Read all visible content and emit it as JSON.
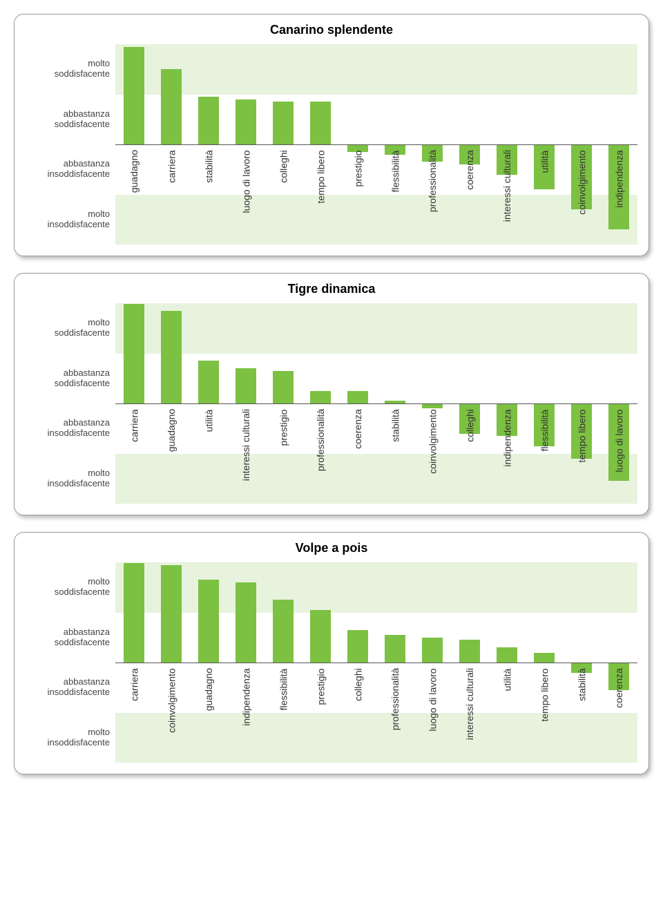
{
  "charts": [
    {
      "title": "Canarino splendente",
      "type": "bar",
      "bar_color": "#7cc142",
      "band_color": "#e8f3de",
      "background_color": "#ffffff",
      "axis_color": "#555555",
      "text_color": "#444444",
      "label_fontsize": 14,
      "title_fontsize": 18,
      "y_range": [
        -2,
        2
      ],
      "y_bands": [
        {
          "from": 1,
          "to": 2,
          "label": "molto\nsoddisfacente"
        },
        {
          "from": 0,
          "to": 1,
          "label": "abbastanza\nsoddisfacente"
        },
        {
          "from": -1,
          "to": 0,
          "label": "abbastanza\ninsoddisfacente"
        },
        {
          "from": -2,
          "to": -1,
          "label": "molto\ninsoddisfacente"
        }
      ],
      "categories": [
        "guadagno",
        "carriera",
        "stabilità",
        "luogo di lavoro",
        "colleghi",
        "tempo libero",
        "prestigio",
        "flessibilità",
        "professionalità",
        "coerenza",
        "interessi culturali",
        "utilità",
        "coinvolgimento",
        "indipendenza"
      ],
      "values": [
        1.95,
        1.5,
        0.95,
        0.9,
        0.85,
        0.85,
        -0.15,
        -0.2,
        -0.35,
        -0.4,
        -0.6,
        -0.9,
        -1.3,
        -1.7
      ]
    },
    {
      "title": "Tigre dinamica",
      "type": "bar",
      "bar_color": "#7cc142",
      "band_color": "#e8f3de",
      "background_color": "#ffffff",
      "axis_color": "#555555",
      "text_color": "#444444",
      "label_fontsize": 14,
      "title_fontsize": 18,
      "y_range": [
        -2,
        2
      ],
      "y_bands": [
        {
          "from": 1,
          "to": 2,
          "label": "molto\nsoddisfacente"
        },
        {
          "from": 0,
          "to": 1,
          "label": "abbastanza\nsoddisfacente"
        },
        {
          "from": -1,
          "to": 0,
          "label": "abbastanza\ninsoddisfacente"
        },
        {
          "from": -2,
          "to": -1,
          "label": "molto\ninsoddisfacente"
        }
      ],
      "categories": [
        "carriera",
        "guadagno",
        "utilità",
        "interessi culturali",
        "prestigio",
        "professionalità",
        "coerenza",
        "stabilità",
        "coinvolgimento",
        "colleghi",
        "indipendenza",
        "flessibilità",
        "tempo libero",
        "luogo di lavoro"
      ],
      "values": [
        1.98,
        1.85,
        0.85,
        0.7,
        0.65,
        0.25,
        0.25,
        0.05,
        -0.1,
        -0.6,
        -0.65,
        -0.85,
        -1.1,
        -1.55
      ]
    },
    {
      "title": "Volpe a pois",
      "type": "bar",
      "bar_color": "#7cc142",
      "band_color": "#e8f3de",
      "background_color": "#ffffff",
      "axis_color": "#555555",
      "text_color": "#444444",
      "label_fontsize": 14,
      "title_fontsize": 18,
      "y_range": [
        -2,
        2
      ],
      "y_bands": [
        {
          "from": 1,
          "to": 2,
          "label": "molto\nsoddisfacente"
        },
        {
          "from": 0,
          "to": 1,
          "label": "abbastanza\nsoddisfacente"
        },
        {
          "from": -1,
          "to": 0,
          "label": "abbastanza\ninsoddisfacente"
        },
        {
          "from": -2,
          "to": -1,
          "label": "molto\ninsoddisfacente"
        }
      ],
      "categories": [
        "carriera",
        "coinvolgimento",
        "guadagno",
        "indipendenza",
        "flessibilità",
        "prestigio",
        "colleghi",
        "professionalità",
        "luogo di lavoro",
        "interessi culturali",
        "utilità",
        "tempo libero",
        "stabilità",
        "coerenza"
      ],
      "values": [
        1.98,
        1.95,
        1.65,
        1.6,
        1.25,
        1.05,
        0.65,
        0.55,
        0.5,
        0.45,
        0.3,
        0.2,
        -0.2,
        -0.55
      ]
    }
  ]
}
